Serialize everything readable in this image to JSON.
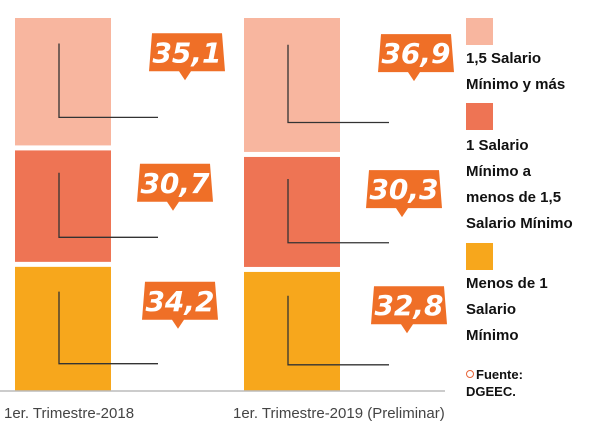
{
  "chart_data": {
    "type": "bar",
    "stacked": true,
    "categories": [
      "1er. Trimestre-2018",
      "1er. Trimestre-2019 (Preliminar)"
    ],
    "series": [
      {
        "name": "Menos de  1 Salario Mínimo",
        "values": [
          34.2,
          32.8
        ],
        "color": "#f7a71c"
      },
      {
        "name": "1 Salario Mínimo a menos de  1,5 Salario Mínimo",
        "values": [
          30.7,
          30.3
        ],
        "color": "#ee7454"
      },
      {
        "name": "1,5 Salario Mínimo y más",
        "values": [
          35.1,
          36.9
        ],
        "color": "#f8b69f"
      }
    ],
    "labels": [
      [
        "34,2",
        "32,8"
      ],
      [
        "30,7",
        "30,3"
      ],
      [
        "35,1",
        "36,9"
      ]
    ],
    "callout_color": "#ef6f27",
    "ylim": [
      0,
      100
    ],
    "legend": "right"
  },
  "legend": {
    "items": [
      {
        "label_lines": [
          "1,5 Salario",
          "Mínimo y más"
        ],
        "color": "#f8b69f"
      },
      {
        "label_lines": [
          "1 Salario",
          "Mínimo a",
          "menos de  1,5",
          "Salario Mínimo"
        ],
        "color": "#ee7454"
      },
      {
        "label_lines": [
          "Menos de  1",
          "Salario",
          "Mínimo"
        ],
        "color": "#f7a71c"
      }
    ]
  },
  "source": {
    "line1": "Fuente:",
    "line2": "DGEEC."
  }
}
